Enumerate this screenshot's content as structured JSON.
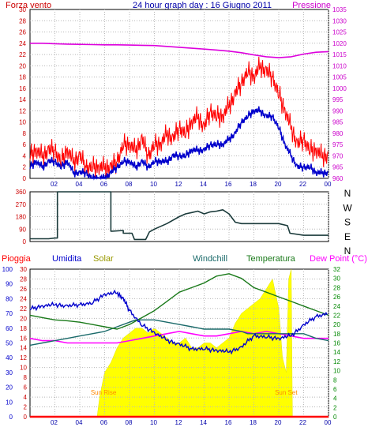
{
  "title": "24 hour graph day : 16 Giugno 2011",
  "colors": {
    "wind": "#ff0000",
    "windavg": "#0000cc",
    "pressure": "#dd00dd",
    "dir": "#1a3a3a",
    "rain": "#ff0000",
    "humidity": "#0000cc",
    "solar": "#ffff00",
    "windchill": "#1a6a6a",
    "temperature": "#1a7a1a",
    "dewpoint": "#ff00ff",
    "axis_left_top": "#cc0000",
    "axis_right_top": "#cc00cc",
    "axis_left_bottom": "#0000cc",
    "axis_right_bottom": "#008800",
    "sun_label": "#ff8800"
  },
  "chart_data": [
    {
      "type": "line",
      "id": "wind-pressure",
      "title": "24 hour graph day : 16 Giugno 2011",
      "left_label": "Forza vento",
      "right_label": "Pressione",
      "x_ticks": [
        "02",
        "04",
        "06",
        "08",
        "10",
        "12",
        "14",
        "16",
        "18",
        "20",
        "22",
        "00"
      ],
      "left_ticks": [
        "0",
        "2",
        "4",
        "6",
        "8",
        "10",
        "12",
        "14",
        "16",
        "18",
        "20",
        "22",
        "24",
        "26",
        "28",
        "30"
      ],
      "right_ticks": [
        "960",
        "965",
        "970",
        "975",
        "980",
        "985",
        "990",
        "995",
        "1000",
        "1005",
        "1010",
        "1015",
        "1020",
        "1025",
        "1030",
        "1035"
      ],
      "xlim": [
        0,
        24
      ],
      "ylim_left": [
        0,
        30
      ],
      "ylim_right": [
        960,
        1035
      ],
      "series": [
        {
          "key": "wind",
          "axis": "left",
          "x": [
            0,
            0.5,
            1,
            1.5,
            2,
            2.5,
            3,
            3.5,
            4,
            4.5,
            5,
            5.5,
            6,
            6.5,
            7,
            7.5,
            8,
            8.5,
            9,
            9.5,
            10,
            10.5,
            11,
            11.5,
            12,
            12.5,
            13,
            13.5,
            14,
            14.5,
            15,
            15.5,
            16,
            16.5,
            17,
            17.5,
            18,
            18.5,
            19,
            19.5,
            20,
            20.5,
            21,
            21.5,
            22,
            22.5,
            23,
            23.5,
            24
          ],
          "y": [
            4,
            5,
            4,
            5,
            5,
            3,
            5,
            3,
            4,
            2,
            2,
            2,
            2,
            2,
            3,
            6,
            6,
            5,
            7,
            4,
            6,
            6,
            8,
            7,
            9,
            8,
            10,
            11,
            9,
            12,
            11,
            11,
            13,
            15,
            17,
            19,
            18,
            20,
            19,
            18,
            15,
            12,
            9,
            6,
            7,
            5,
            5,
            4,
            4
          ]
        },
        {
          "key": "windavg",
          "axis": "left",
          "x": [
            0,
            0.5,
            1,
            1.5,
            2,
            2.5,
            3,
            3.5,
            4,
            4.5,
            5,
            5.5,
            6,
            6.5,
            7,
            7.5,
            8,
            8.5,
            9,
            9.5,
            10,
            10.5,
            11,
            11.5,
            12,
            12.5,
            13,
            13.5,
            14,
            14.5,
            15,
            15.5,
            16,
            16.5,
            17,
            17.5,
            18,
            18.5,
            19,
            19.5,
            20,
            20.5,
            21,
            21.5,
            22,
            22.5,
            23,
            23.5,
            24
          ],
          "y": [
            2,
            3,
            2,
            3,
            3,
            2,
            3,
            1,
            1,
            1,
            0,
            0,
            0,
            1,
            2,
            3,
            3,
            2,
            3,
            2,
            3,
            3,
            3,
            4,
            4,
            4,
            5,
            5,
            5,
            6,
            6,
            6,
            7,
            8,
            10,
            11,
            12,
            12,
            11,
            11,
            9,
            6,
            4,
            2,
            2,
            2,
            1,
            1,
            1
          ]
        },
        {
          "key": "pressure",
          "axis": "right",
          "x": [
            0,
            1,
            2,
            3,
            4,
            5,
            6,
            7,
            8,
            9,
            10,
            11,
            12,
            13,
            14,
            15,
            16,
            17,
            18,
            19,
            20,
            21,
            22,
            23,
            24
          ],
          "y": [
            1020,
            1020,
            1019.8,
            1019.6,
            1019.5,
            1019.4,
            1019.3,
            1019.3,
            1019.2,
            1019.1,
            1019,
            1018.6,
            1018.2,
            1017.8,
            1017.4,
            1017,
            1016.5,
            1015.8,
            1014.8,
            1014,
            1013.6,
            1014,
            1015.2,
            1016,
            1016.3
          ]
        }
      ]
    },
    {
      "type": "line",
      "id": "wind-direction",
      "x_ticks": [
        "02",
        "04",
        "06",
        "08",
        "10",
        "12",
        "14",
        "16",
        "18",
        "20",
        "22",
        "00"
      ],
      "left_ticks": [
        "0",
        "90",
        "180",
        "270",
        "360"
      ],
      "compass_labels": [
        "N",
        "W",
        "S",
        "E",
        "N"
      ],
      "xlim": [
        0,
        24
      ],
      "ylim": [
        0,
        360
      ],
      "series": [
        {
          "key": "dir",
          "x": [
            0,
            1.5,
            2,
            2.2,
            2.2,
            6.5,
            6.5,
            6.6,
            7.5,
            7.5,
            8.2,
            8.4,
            9.3,
            9.6,
            10,
            11,
            12,
            12.5,
            13,
            13.5,
            14,
            14.5,
            15,
            15.5,
            16,
            16.5,
            17,
            18,
            19,
            20,
            20.7,
            20.9,
            22,
            22.5,
            24
          ],
          "y": [
            20,
            20,
            25,
            25,
            360,
            360,
            75,
            75,
            80,
            60,
            60,
            15,
            15,
            70,
            90,
            130,
            180,
            200,
            210,
            220,
            200,
            215,
            220,
            230,
            200,
            140,
            130,
            130,
            130,
            130,
            115,
            60,
            45,
            45,
            45
          ]
        }
      ]
    },
    {
      "type": "area",
      "id": "hum-solar-temp",
      "label_rain": "Pioggia",
      "label_hum": "Umidita",
      "label_solar": "Solar",
      "label_windchill": "Windchill",
      "label_temp": "Temperatura",
      "label_dew": "Dew Point (°C)",
      "sunrise_label": "Sun Rise",
      "sunset_label": "Sun Set",
      "x_ticks": [
        "02",
        "04",
        "06",
        "08",
        "10",
        "12",
        "14",
        "16",
        "18",
        "20",
        "22",
        "00"
      ],
      "left_ticks": [
        "0",
        "10",
        "20",
        "30",
        "40",
        "50",
        "60",
        "70",
        "80",
        "90",
        "100"
      ],
      "rain_ticks": [
        "0",
        "2",
        "4",
        "6",
        "8",
        "10",
        "12",
        "14",
        "16",
        "18",
        "20",
        "22",
        "24",
        "26",
        "28",
        "30"
      ],
      "right_ticks": [
        "0",
        "2",
        "4",
        "6",
        "8",
        "10",
        "12",
        "14",
        "16",
        "18",
        "20",
        "22",
        "24",
        "26",
        "28",
        "30",
        "32"
      ],
      "xlim": [
        0,
        24
      ],
      "sunrise": 5.4,
      "sunset": 21.1,
      "series": [
        {
          "key": "rain",
          "axis": "rain",
          "x": [
            0,
            24
          ],
          "y": [
            0,
            0
          ]
        },
        {
          "key": "solar",
          "axis": "rain",
          "x": [
            5.4,
            5.6,
            6,
            6.5,
            7,
            7.5,
            8,
            8.5,
            9,
            9.5,
            10,
            10.5,
            11,
            11.5,
            12,
            12.5,
            13,
            13.5,
            14,
            14.5,
            15,
            15.5,
            16,
            16.5,
            17,
            17.5,
            18,
            18.5,
            19,
            19.5,
            20,
            20.3,
            20.6,
            20.8,
            21,
            21.1
          ],
          "y": [
            0,
            4,
            9,
            11,
            14,
            16,
            17,
            18,
            18,
            17,
            18,
            17,
            16,
            15,
            15,
            16,
            14,
            14,
            15,
            15,
            14,
            15,
            16,
            19,
            21,
            22,
            23,
            24,
            26,
            28,
            22,
            12,
            9,
            28,
            30,
            0
          ]
        },
        {
          "key": "humidity",
          "axis": "left",
          "x": [
            0,
            1,
            2,
            3,
            4,
            5,
            6,
            7,
            7.5,
            8,
            9,
            10,
            11,
            12,
            13,
            14,
            15,
            16,
            17,
            18,
            19,
            20,
            21,
            22,
            23,
            24
          ],
          "y": [
            73,
            75,
            76,
            75,
            76,
            77,
            83,
            84,
            80,
            72,
            62,
            57,
            52,
            49,
            46,
            46,
            45,
            44,
            47,
            55,
            54,
            53,
            55,
            62,
            68,
            70
          ]
        },
        {
          "key": "windchill",
          "axis": "right",
          "x": [
            0,
            1,
            2,
            3,
            4,
            5,
            6,
            7,
            8,
            8.5,
            9,
            10,
            11,
            12,
            13,
            14,
            15,
            16,
            17,
            17.5,
            18,
            19,
            20,
            21,
            22,
            23,
            24
          ],
          "y": [
            15.5,
            16,
            16.5,
            17,
            17.5,
            18,
            18.5,
            19.5,
            20.5,
            21,
            21,
            21,
            20.5,
            20,
            19.5,
            19,
            19,
            19,
            18.5,
            18,
            18,
            18,
            18,
            18,
            18,
            17,
            16.5
          ]
        },
        {
          "key": "temperature",
          "axis": "right",
          "x": [
            0,
            1,
            2,
            3,
            4,
            5,
            6,
            7,
            8,
            9,
            10,
            11,
            12,
            13,
            14,
            15,
            16,
            17,
            18,
            19,
            20,
            21,
            22,
            23,
            24
          ],
          "y": [
            22,
            21.5,
            21,
            20.8,
            20.5,
            20,
            19.5,
            19,
            20,
            21.5,
            23,
            25,
            27,
            28,
            29,
            30.5,
            31,
            30,
            28,
            27,
            26,
            25,
            24,
            23,
            22
          ]
        },
        {
          "key": "dewpoint",
          "axis": "right",
          "x": [
            0,
            1,
            2,
            3,
            4,
            5,
            6,
            7,
            8,
            9,
            10,
            11,
            12,
            13,
            14,
            15,
            16,
            17,
            18,
            19,
            20,
            21,
            22,
            23,
            24
          ],
          "y": [
            17,
            16.5,
            16.5,
            16,
            16,
            16,
            16,
            16,
            16.5,
            17,
            17.5,
            18,
            18.5,
            18,
            17.5,
            17.5,
            18,
            18.5,
            18,
            18.5,
            18,
            17.5,
            17,
            17,
            17
          ]
        }
      ]
    }
  ]
}
